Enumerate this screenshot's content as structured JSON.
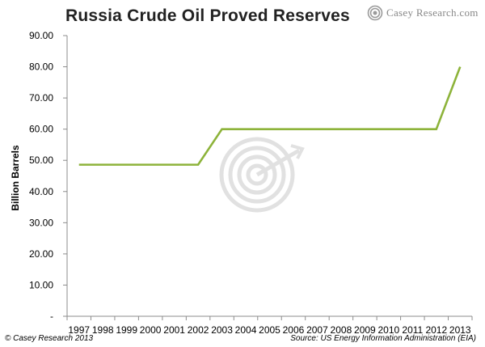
{
  "header": {
    "title": "Russia Crude Oil Proved Reserves",
    "logo_text": "Casey Research.com"
  },
  "footer": {
    "copyright": "© Casey Research 2013",
    "source": "Source: US Energy Information Administration (EIA)"
  },
  "colors": {
    "line": "#8db33a",
    "axis": "#8c8c8c",
    "grid": "#d9d9d9",
    "watermark": "#dcdcdc"
  },
  "chart_data": {
    "type": "line",
    "title": "Russia Crude Oil Proved Reserves",
    "xlabel": "",
    "ylabel": "Billion Barrels",
    "ylim": [
      0,
      90
    ],
    "grid": false,
    "yticks": [
      "-",
      "10.00",
      "20.00",
      "30.00",
      "40.00",
      "50.00",
      "60.00",
      "70.00",
      "80.00",
      "90.00"
    ],
    "categories": [
      "1997",
      "1998",
      "1999",
      "2000",
      "2001",
      "2002",
      "2003",
      "2004",
      "2005",
      "2006",
      "2007",
      "2008",
      "2009",
      "2010",
      "2011",
      "2012",
      "2013"
    ],
    "series": [
      {
        "values": [
          48.6,
          48.6,
          48.6,
          48.6,
          48.6,
          48.6,
          60,
          60,
          60,
          60,
          60,
          60,
          60,
          60,
          60,
          60,
          80
        ]
      }
    ]
  }
}
